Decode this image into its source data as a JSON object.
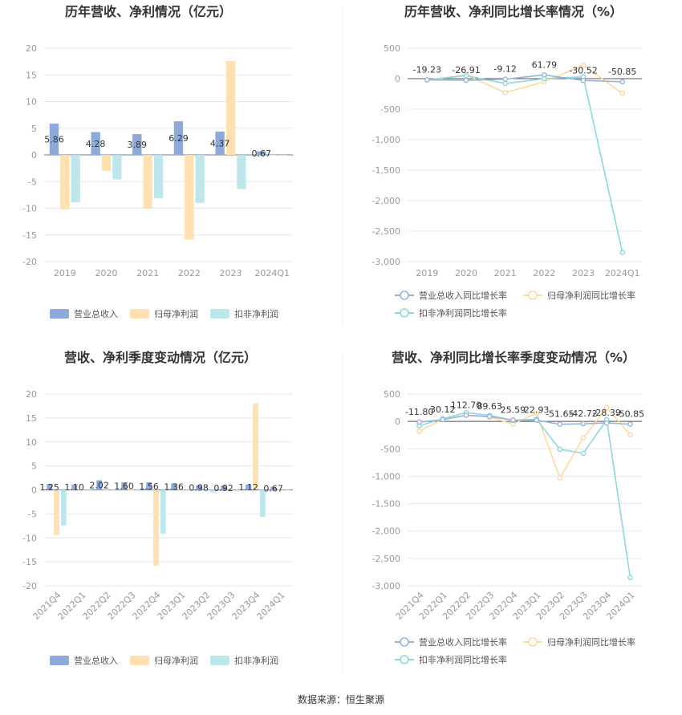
{
  "footer": {
    "source": "数据来源：恒生聚源"
  },
  "colors": {
    "revenue": "#8EAADB",
    "net_profit": "#FFE0B0",
    "deducted_profit": "#BDE7EA",
    "rev_line": "#9AB3DD",
    "np_line": "#FFD99A",
    "dp_line": "#8DD8DC"
  },
  "chart_data": [
    {
      "type": "bar",
      "title": "历年营收、净利情况（亿元）",
      "categories": [
        "2019",
        "2020",
        "2021",
        "2022",
        "2023",
        "2024Q1"
      ],
      "ylim": [
        -20,
        20
      ],
      "yticks": [
        20,
        15,
        10,
        5,
        0,
        -5,
        -10,
        -15,
        -20
      ],
      "series": [
        {
          "name": "营业总收入",
          "color": "#8EAADB",
          "values": [
            5.86,
            4.28,
            3.89,
            6.29,
            4.37,
            0.67
          ],
          "labels": [
            "5.86",
            "4.28",
            "3.89",
            "6.29",
            "4.37",
            "0.67"
          ]
        },
        {
          "name": "归母净利润",
          "color": "#FFE0B0",
          "values": [
            -10.2,
            -3.0,
            -10.1,
            -15.9,
            17.6,
            -0.05
          ]
        },
        {
          "name": "扣非净利润",
          "color": "#BDE7EA",
          "values": [
            -8.9,
            -4.6,
            -8.1,
            -9.0,
            -6.4,
            -0.1
          ]
        }
      ],
      "legend": "bottom"
    },
    {
      "type": "line",
      "title": "历年营收、净利同比增长率情况（%）",
      "categories": [
        "2019",
        "2020",
        "2021",
        "2022",
        "2023",
        "2024Q1"
      ],
      "ylim": [
        -3000,
        500
      ],
      "yticks": [
        "500",
        "0",
        "-500",
        "-1,000",
        "-1,500",
        "-2,000",
        "-2,500",
        "-3,000"
      ],
      "ytick_values": [
        500,
        0,
        -500,
        -1000,
        -1500,
        -2000,
        -2500,
        -3000
      ],
      "series": [
        {
          "name": "营业总收入同比增长率",
          "color": "#9AB3DD",
          "values": [
            -19.23,
            -26.91,
            -9.12,
            61.79,
            -30.52,
            -50.85
          ],
          "labels": [
            "-19.23",
            "-26.91",
            "-9.12",
            "61.79",
            "-30.52",
            "-50.85"
          ]
        },
        {
          "name": "归母净利润同比增长率",
          "color": "#FFD99A",
          "values": [
            -20,
            60,
            -230,
            -50,
            220,
            -240
          ]
        },
        {
          "name": "扣非净利润同比增长率",
          "color": "#8DD8DC",
          "values": [
            -20,
            50,
            -80,
            0,
            30,
            -2850
          ]
        }
      ],
      "legend": "bottom"
    },
    {
      "type": "bar",
      "title": "营收、净利季度变动情况（亿元）",
      "categories": [
        "2021Q4",
        "2022Q1",
        "2022Q2",
        "2022Q3",
        "2022Q4",
        "2023Q1",
        "2023Q2",
        "2023Q3",
        "2023Q4",
        "2024Q1"
      ],
      "ylim": [
        -20,
        20
      ],
      "yticks": [
        20,
        15,
        10,
        5,
        0,
        -5,
        -10,
        -15,
        -20
      ],
      "series": [
        {
          "name": "营业总收入",
          "color": "#8EAADB",
          "values": [
            1.25,
            1.1,
            2.02,
            1.6,
            1.56,
            1.36,
            0.98,
            0.92,
            1.12,
            0.67
          ],
          "labels": [
            "1.25",
            "1.10",
            "2.02",
            "1.60",
            "1.56",
            "1.36",
            "0.98",
            "0.92",
            "1.12",
            "0.67"
          ]
        },
        {
          "name": "归母净利润",
          "color": "#FFE0B0",
          "values": [
            -9.4,
            0.1,
            0.2,
            0.1,
            -15.8,
            0.1,
            -0.2,
            -0.1,
            18.0,
            -0.05
          ]
        },
        {
          "name": "扣非净利润",
          "color": "#BDE7EA",
          "values": [
            -7.4,
            -0.1,
            -0.1,
            -0.1,
            -9.1,
            -0.1,
            -0.5,
            -0.2,
            -5.6,
            -0.1
          ]
        }
      ],
      "legend": "bottom"
    },
    {
      "type": "line",
      "title": "营收、净利同比增长率季度变动情况（%）",
      "categories": [
        "2021Q4",
        "2022Q1",
        "2022Q2",
        "2022Q3",
        "2022Q4",
        "2023Q1",
        "2023Q2",
        "2023Q3",
        "2023Q4",
        "2024Q1"
      ],
      "ylim": [
        -3000,
        500
      ],
      "yticks": [
        "500",
        "0",
        "-500",
        "-1,000",
        "-1,500",
        "-2,000",
        "-2,500",
        "-3,000"
      ],
      "ytick_values": [
        500,
        0,
        -500,
        -1000,
        -1500,
        -2000,
        -2500,
        -3000
      ],
      "series": [
        {
          "name": "营业总收入同比增长率",
          "color": "#9AB3DD",
          "values": [
            -11.8,
            30.12,
            112.7,
            89.63,
            25.59,
            22.93,
            -51.65,
            -42.72,
            -28.39,
            -50.85
          ],
          "labels": [
            "-11.80",
            "30.12",
            "112.70",
            "89.63",
            "25.59",
            "22.93",
            "-51.65",
            "-42.72",
            "-28.39",
            "-50.85"
          ]
        },
        {
          "name": "归母净利润同比增长率",
          "color": "#FFD99A",
          "values": [
            -180,
            40,
            110,
            80,
            -50,
            150,
            -1030,
            -300,
            250,
            -240
          ]
        },
        {
          "name": "扣非净利润同比增长率",
          "color": "#8DD8DC",
          "values": [
            -80,
            50,
            160,
            110,
            20,
            40,
            -510,
            -580,
            30,
            -2850
          ]
        }
      ],
      "legend": "bottom"
    }
  ]
}
